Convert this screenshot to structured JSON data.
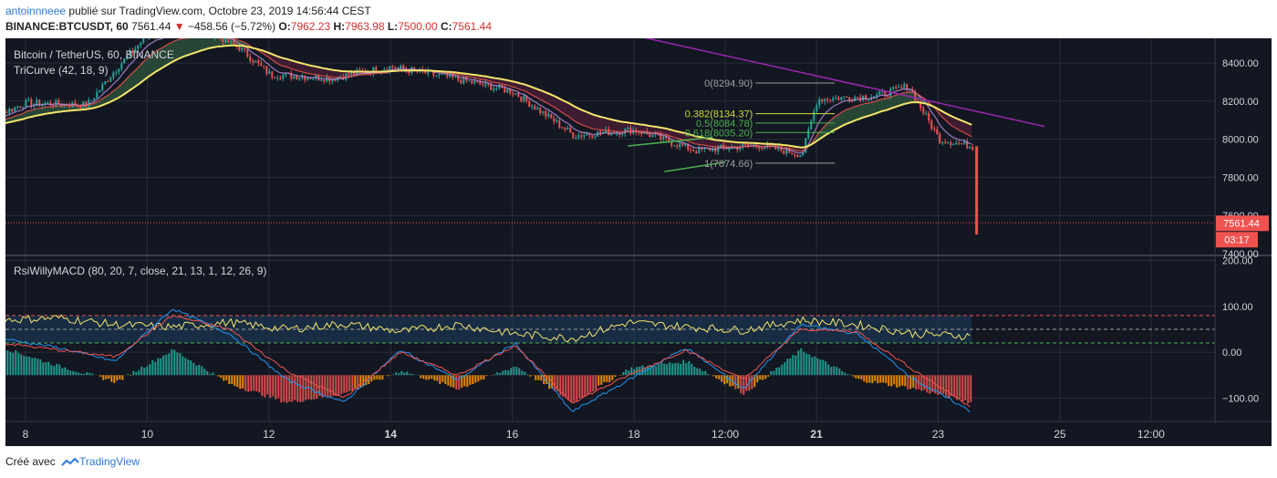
{
  "header": {
    "author": "antoinnneee",
    "published_text": " publié sur TradingView.com, Octobre 23, 2019 14:56:44 CEST",
    "symbol": "BINANCE:BTCUSDT, 60",
    "last": "7561.44",
    "change_arrow": "▼",
    "change": "−458.56 (−5.72%)",
    "o_label": "O:",
    "o_value": "7962.23",
    "h_label": "H:",
    "h_value": "7963.98",
    "l_label": "L:",
    "l_value": "7500.00",
    "c_label": "C:",
    "c_value": "7561.44"
  },
  "footer": {
    "prefix": "Créé avec",
    "brand": "TradingView",
    "logo_icon": "tradingview-logo-icon"
  },
  "colors": {
    "background": "#131722",
    "grid": "#2a2e39",
    "axis_text": "#d1d4dc",
    "up": "#26a69a",
    "down": "#ef5350",
    "tricurve": "#f5e56b",
    "trend_purple": "#9c27b0",
    "fib_green": "#4caf50",
    "fib_yellow": "#cddc39",
    "price_tag": "#ef5350",
    "rsi_band": "#1c3b5a",
    "macd_blue": "#2196f3",
    "macd_red": "#ef5350"
  },
  "chart_data": [
    {
      "type": "candlestick",
      "title": "Bitcoin / TetherUS, 60, BINANCE",
      "indicator": "TriCurve (42, 18, 9)",
      "x_ticks": [
        "8",
        "10",
        "12",
        "14",
        "16",
        "18",
        "12:00",
        "21",
        "23",
        "25",
        "12:00"
      ],
      "y_ticks": [
        "8400.00",
        "8200.00",
        "8000.00",
        "7800.00",
        "7600.00",
        "7400.00"
      ],
      "ylim": [
        7400,
        8520
      ],
      "last_price_label": "7561.44",
      "countdown_label": "03:17",
      "approx_close_path": [
        {
          "x": "Oct 7",
          "y": 8060
        },
        {
          "x": "Oct 8",
          "y": 8190
        },
        {
          "x": "Oct 9",
          "y": 8180
        },
        {
          "x": "Oct 9 12:00",
          "y": 8380
        },
        {
          "x": "Oct 10",
          "y": 8550
        },
        {
          "x": "Oct 11",
          "y": 8560
        },
        {
          "x": "Oct 11 12:00",
          "y": 8480
        },
        {
          "x": "Oct 12",
          "y": 8340
        },
        {
          "x": "Oct 13",
          "y": 8320
        },
        {
          "x": "Oct 14",
          "y": 8380
        },
        {
          "x": "Oct 15",
          "y": 8320
        },
        {
          "x": "Oct 16",
          "y": 8250
        },
        {
          "x": "Oct 17",
          "y": 8020
        },
        {
          "x": "Oct 18",
          "y": 8050
        },
        {
          "x": "Oct 19",
          "y": 7940
        },
        {
          "x": "Oct 20",
          "y": 7970
        },
        {
          "x": "Oct 20 18:00",
          "y": 7920
        },
        {
          "x": "Oct 21",
          "y": 8210
        },
        {
          "x": "Oct 22",
          "y": 8230
        },
        {
          "x": "Oct 22 12:00",
          "y": 8280
        },
        {
          "x": "Oct 23",
          "y": 8000
        },
        {
          "x": "Oct 23 14:00",
          "y": 7960
        },
        {
          "x": "Oct 23 15:00",
          "y": 7561
        }
      ],
      "fib_levels": [
        {
          "label": "0(8294.90)",
          "value": 8294.9
        },
        {
          "label": "0.382(8134.37)",
          "value": 8134.37
        },
        {
          "label": "0.5(8084.78)",
          "value": 8084.78
        },
        {
          "label": "0.618(8035.20)",
          "value": 8035.2
        },
        {
          "label": "1(7874.66)",
          "value": 7874.66
        }
      ],
      "trendline_purple": [
        {
          "x": "Oct 18",
          "y": 8545
        },
        {
          "x": "Oct 24 18:00",
          "y": 8067
        }
      ],
      "trendline_green": [
        {
          "x": "Oct 18 12:00",
          "y": 7830
        },
        {
          "x": "Oct 19 12:00",
          "y": 7880
        }
      ]
    },
    {
      "type": "line",
      "title": "RsiWillyMACD (80, 20, 7, close, 21, 13, 1, 12, 26, 9)",
      "y_ticks": [
        "200.00",
        "100.00",
        "0.00",
        "−100.00"
      ],
      "ylim": [
        -145,
        205
      ],
      "reference_levels": [
        80,
        50,
        20
      ],
      "series": [
        {
          "color": "#f5e56b",
          "approx_values": [
            70,
            75,
            60,
            55,
            65,
            50,
            62,
            45,
            60,
            40,
            30,
            65,
            55,
            48,
            70,
            60,
            40,
            35
          ]
        },
        {
          "color": "#2196f3",
          "approx_values": [
            30,
            10,
            -20,
            95,
            40,
            -60,
            -110,
            5,
            -60,
            20,
            -130,
            -60,
            10,
            -80,
            60,
            40,
            -60,
            -130
          ]
        },
        {
          "color": "#ef5350",
          "approx_values": [
            20,
            5,
            -10,
            80,
            50,
            -40,
            -100,
            0,
            -50,
            15,
            -110,
            -50,
            5,
            -60,
            50,
            45,
            -40,
            -120
          ]
        }
      ],
      "histogram_approx": [
        60,
        20,
        -15,
        55,
        -20,
        -60,
        -40,
        10,
        -30,
        20,
        -60,
        15,
        30,
        -40,
        55,
        -10,
        -30,
        -60
      ]
    }
  ]
}
